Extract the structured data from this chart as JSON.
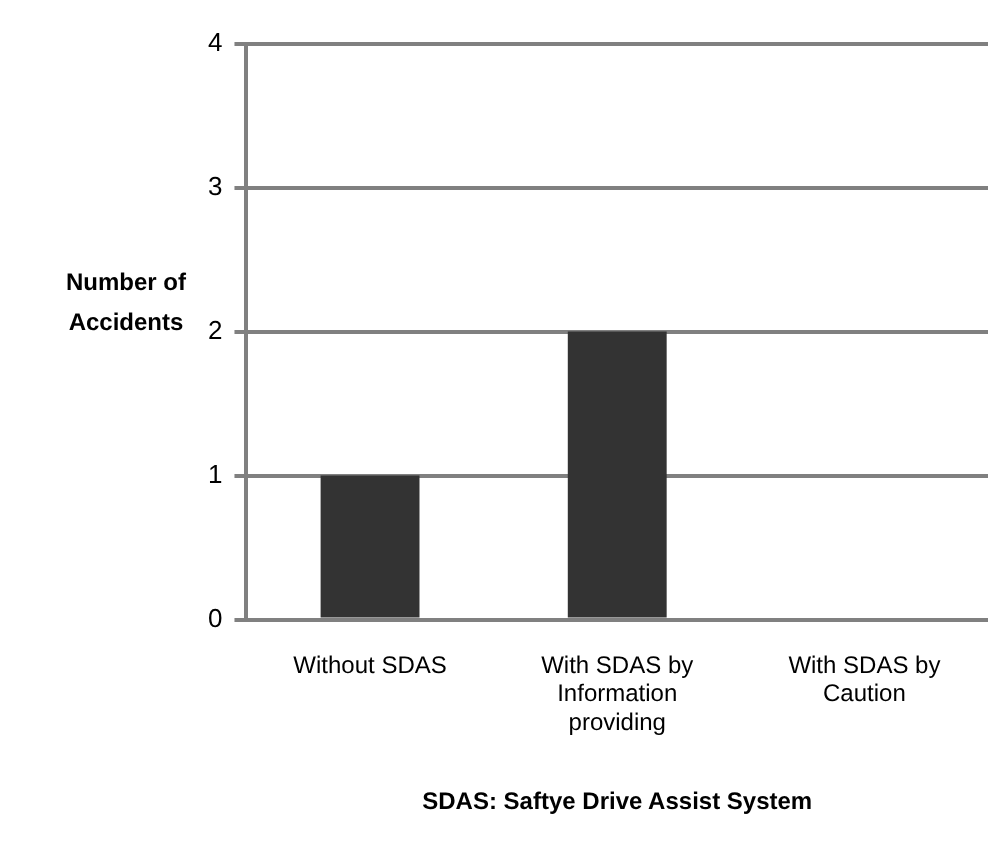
{
  "chart_data": {
    "type": "bar",
    "categories": [
      "Without SDAS",
      "With SDAS by Information providing",
      "With SDAS by Caution"
    ],
    "values": [
      1,
      2,
      0
    ],
    "color": "#333333",
    "ylabel": "Number of Accidents",
    "xlabel": "SDAS: Saftye Drive Assist System",
    "ylim": [
      0,
      4
    ],
    "yticks": [
      0,
      1,
      2,
      3,
      4
    ],
    "grid": "y"
  }
}
